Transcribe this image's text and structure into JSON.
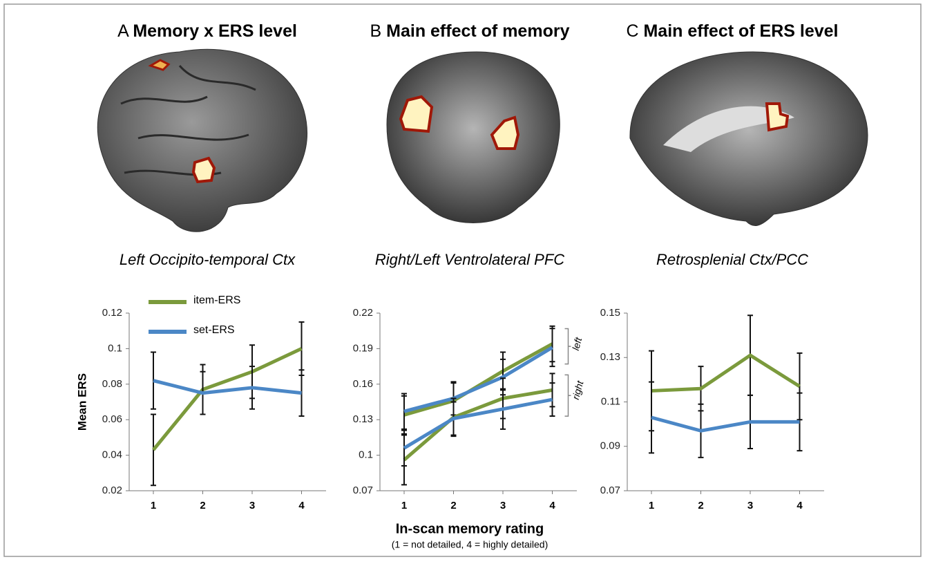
{
  "chart_data": [
    {
      "type": "line",
      "panel": "A",
      "title": "Memory x ERS level",
      "subtitle": "Left Occipito-temporal Ctx",
      "y_label": "Mean ERS",
      "categories": [
        "1",
        "2",
        "3",
        "4"
      ],
      "ylim": [
        0.02,
        0.12
      ],
      "yticks": [
        0.02,
        0.04,
        0.06,
        0.08,
        0.1,
        0.12
      ],
      "legend": "top-left",
      "series": [
        {
          "name": "item-ERS",
          "color": "#7b9a3c",
          "values": [
            0.043,
            0.077,
            0.087,
            0.1
          ],
          "errors": [
            0.02,
            0.014,
            0.015,
            0.015
          ]
        },
        {
          "name": "set-ERS",
          "color": "#4b87c6",
          "values": [
            0.082,
            0.075,
            0.078,
            0.075
          ],
          "errors": [
            0.016,
            0.012,
            0.012,
            0.013
          ]
        }
      ]
    },
    {
      "type": "line",
      "panel": "B",
      "title": "Main effect of memory",
      "subtitle": "Right/Left Ventrolateral PFC",
      "x_label": "In-scan memory rating",
      "x_note": "(1 = not detailed, 4 = highly detailed)",
      "categories": [
        "1",
        "2",
        "3",
        "4"
      ],
      "ylim": [
        0.07,
        0.22
      ],
      "yticks": [
        0.07,
        0.1,
        0.13,
        0.16,
        0.19,
        0.22
      ],
      "groups": [
        {
          "label": "left",
          "series": [
            {
              "color": "#7b9a3c",
              "values": [
                0.134,
                0.146,
                0.171,
                0.194
              ],
              "errors": [
                0.016,
                0.015,
                0.016,
                0.015
              ]
            },
            {
              "color": "#4b87c6",
              "values": [
                0.137,
                0.148,
                0.166,
                0.191
              ],
              "errors": [
                0.015,
                0.014,
                0.015,
                0.016
              ]
            }
          ]
        },
        {
          "label": "right",
          "series": [
            {
              "color": "#7b9a3c",
              "values": [
                0.096,
                0.132,
                0.148,
                0.155
              ],
              "errors": [
                0.021,
                0.016,
                0.017,
                0.014
              ]
            },
            {
              "color": "#4b87c6",
              "values": [
                0.106,
                0.131,
                0.139,
                0.147
              ],
              "errors": [
                0.015,
                0.014,
                0.017,
                0.014
              ]
            }
          ]
        }
      ]
    },
    {
      "type": "line",
      "panel": "C",
      "title": "Main effect of ERS level",
      "subtitle": "Retrosplenial Ctx/PCC",
      "categories": [
        "1",
        "2",
        "3",
        "4"
      ],
      "ylim": [
        0.07,
        0.15
      ],
      "yticks": [
        0.07,
        0.09,
        0.11,
        0.13,
        0.15
      ],
      "series": [
        {
          "color": "#7b9a3c",
          "values": [
            0.115,
            0.116,
            0.131,
            0.117
          ],
          "errors": [
            0.018,
            0.01,
            0.018,
            0.015
          ]
        },
        {
          "color": "#4b87c6",
          "values": [
            0.103,
            0.097,
            0.101,
            0.101
          ],
          "errors": [
            0.016,
            0.012,
            0.012,
            0.013
          ]
        }
      ]
    }
  ]
}
